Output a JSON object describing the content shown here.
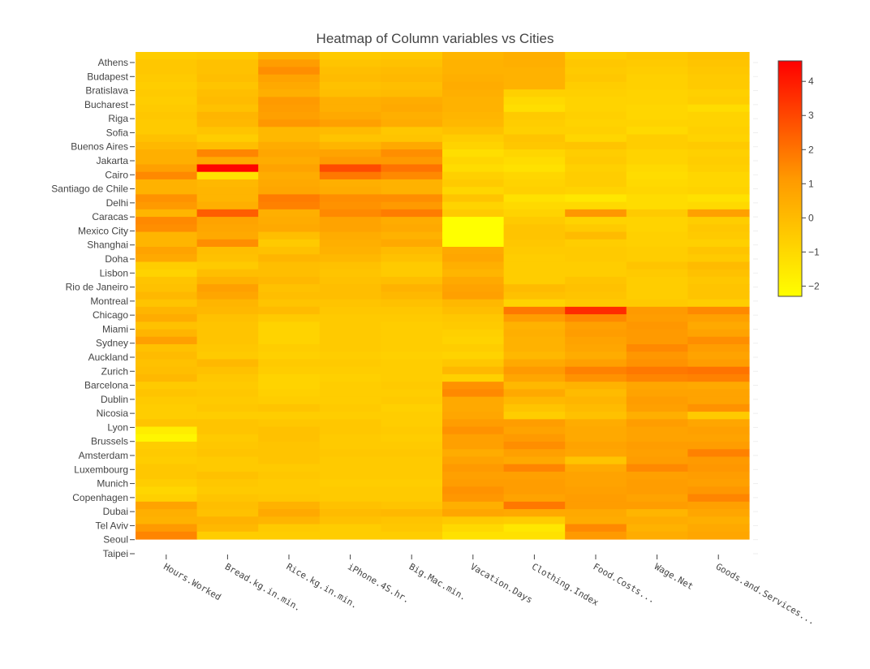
{
  "chart_data": {
    "type": "heatmap",
    "title": "Heatmap of Column variables vs Cities",
    "x": [
      "Hours.Worked",
      "Bread.kg.in.min.",
      "Rice.kg.in.min.",
      "iPhone.4S.hr.",
      "Big.Mac.min.",
      "Vacation.Days",
      "Clothing.Index",
      "Food.Costs...",
      "Wage.Net",
      "Goods.and.Services..."
    ],
    "y_tick_labels": [
      "Athens",
      "Budapest",
      "Bratislava",
      "Bucharest",
      "Riga",
      "Sofia",
      "Buenos Aires",
      "Jakarta",
      "Cairo",
      "Santiago de Chile",
      "Delhi",
      "Caracas",
      "Mexico City",
      "Shanghai",
      "Doha",
      "Lisbon",
      "Rio de Janeiro",
      "Montreal",
      "Chicago",
      "Miami",
      "Sydney",
      "Auckland",
      "Zurich",
      "Barcelona",
      "Dublin",
      "Nicosia",
      "Lyon",
      "Brussels",
      "Amsterdam",
      "Luxembourg",
      "Munich",
      "Copenhagen",
      "Dubai",
      "Tel Aviv",
      "Seoul",
      "Taipei"
    ],
    "colorscale": [
      [
        0,
        "#ffff00"
      ],
      [
        0.5,
        "#ff9900"
      ],
      [
        1,
        "#ff0000"
      ]
    ],
    "zmin": -2.3,
    "zmax": 4.6,
    "colorbar_ticks": [
      4,
      3,
      2,
      1,
      0,
      -1,
      -2
    ],
    "colorbar_tick_labels": [
      "4",
      "3",
      "2",
      "1",
      "0",
      "−1",
      "−2"
    ],
    "z": [
      [
        -0.6,
        -0.5,
        0.3,
        -0.5,
        -0.4,
        0.2,
        0.4,
        -0.6,
        -0.4,
        -0.2
      ],
      [
        -0.4,
        -0.2,
        1.0,
        -0.3,
        -0.2,
        0.3,
        0.4,
        -0.4,
        -0.5,
        -0.3
      ],
      [
        -0.4,
        -0.2,
        1.4,
        -0.1,
        0.0,
        0.3,
        0.3,
        -0.5,
        -0.6,
        -0.4
      ],
      [
        -0.5,
        -0.1,
        0.8,
        0.0,
        0.1,
        0.4,
        0.3,
        -0.4,
        -0.7,
        -0.5
      ],
      [
        -0.6,
        -0.3,
        0.6,
        -0.2,
        -0.1,
        0.5,
        0.3,
        -0.6,
        -0.7,
        -0.5
      ],
      [
        -0.5,
        -0.1,
        0.4,
        -0.1,
        0.0,
        0.4,
        -0.7,
        -0.7,
        -0.8,
        -0.7
      ],
      [
        -0.6,
        0.0,
        1.1,
        0.4,
        0.5,
        0.3,
        -1.0,
        -0.8,
        -0.8,
        -0.6
      ],
      [
        -0.5,
        -0.2,
        1.0,
        0.4,
        0.6,
        0.3,
        -1.2,
        -0.8,
        -0.9,
        -1.1
      ],
      [
        -0.4,
        0.2,
        0.9,
        0.6,
        0.4,
        0.2,
        -0.5,
        -0.7,
        -0.9,
        -0.8
      ],
      [
        -0.5,
        0.1,
        1.2,
        0.9,
        0.5,
        0.1,
        -0.6,
        -0.8,
        -0.8,
        -0.8
      ],
      [
        -0.5,
        -0.3,
        0.1,
        0.0,
        -0.4,
        -0.2,
        -0.7,
        -0.7,
        -1.0,
        -0.7
      ],
      [
        -0.2,
        -0.6,
        0.1,
        -0.3,
        -0.3,
        -0.6,
        -0.3,
        -0.9,
        -0.6,
        -0.8
      ],
      [
        0.1,
        -0.1,
        0.5,
        0.2,
        0.6,
        -0.8,
        -0.4,
        -0.3,
        -0.6,
        -0.5
      ],
      [
        0.4,
        1.6,
        0.7,
        0.8,
        1.4,
        -1.2,
        -0.9,
        -0.6,
        -0.8,
        -0.7
      ],
      [
        0.4,
        0.6,
        0.5,
        1.1,
        1.1,
        -0.9,
        -1.1,
        -0.5,
        -0.8,
        -0.6
      ],
      [
        0.9,
        4.5,
        0.8,
        2.9,
        2.0,
        -1.1,
        -1.3,
        -0.7,
        -1.0,
        -0.7
      ],
      [
        1.5,
        -1.3,
        0.5,
        1.9,
        1.5,
        -0.7,
        -0.9,
        -0.6,
        -1.1,
        -0.9
      ],
      [
        0.3,
        0.1,
        0.6,
        0.4,
        0.3,
        -0.5,
        -0.8,
        -0.6,
        -1.0,
        -0.9
      ],
      [
        0.3,
        0.2,
        0.7,
        0.5,
        0.3,
        -0.9,
        -0.7,
        -0.8,
        -0.9,
        -0.8
      ],
      [
        1.3,
        0.2,
        1.8,
        1.4,
        1.4,
        -0.3,
        -1.3,
        -1.5,
        -1.1,
        -1.3
      ],
      [
        1.1,
        0.4,
        1.7,
        1.3,
        1.1,
        -0.8,
        -1.0,
        -1.0,
        -1.1,
        -1.0
      ],
      [
        0.2,
        2.5,
        0.4,
        1.5,
        1.8,
        -0.5,
        -0.8,
        1.2,
        -0.5,
        0.9
      ],
      [
        1.5,
        0.8,
        0.5,
        0.8,
        0.5,
        -2.3,
        -0.5,
        -0.8,
        -0.8,
        -0.6
      ],
      [
        1.4,
        0.7,
        0.6,
        0.8,
        0.6,
        -2.3,
        -0.3,
        -0.5,
        -0.8,
        -0.4
      ],
      [
        0.2,
        0.6,
        -0.1,
        0.5,
        0.3,
        -2.3,
        -0.3,
        0.0,
        -0.7,
        -0.5
      ],
      [
        0.2,
        1.4,
        -0.5,
        0.4,
        0.6,
        -2.3,
        -0.4,
        -0.6,
        -0.7,
        -0.7
      ],
      [
        0.8,
        -0.1,
        -0.2,
        0.3,
        0.0,
        0.6,
        -0.5,
        -0.5,
        -0.6,
        -0.3
      ],
      [
        0.6,
        -0.2,
        0.2,
        0.1,
        -0.2,
        0.7,
        -0.6,
        -0.5,
        -0.6,
        -0.5
      ],
      [
        -0.6,
        -0.5,
        -0.1,
        -0.2,
        -0.5,
        0.4,
        -0.6,
        -0.6,
        -0.3,
        0.0
      ],
      [
        -0.8,
        -0.1,
        -0.1,
        -0.3,
        -0.5,
        0.2,
        -0.6,
        -0.6,
        -0.5,
        -0.2
      ],
      [
        -0.3,
        0.3,
        0.1,
        -0.2,
        -0.1,
        0.6,
        -0.6,
        -0.3,
        -0.6,
        -0.4
      ],
      [
        -0.2,
        0.9,
        -0.2,
        -0.1,
        0.3,
        0.8,
        0.0,
        -0.2,
        -0.6,
        -0.3
      ],
      [
        0.1,
        0.7,
        -0.1,
        -0.1,
        0.1,
        0.9,
        -0.2,
        -0.3,
        -0.6,
        -0.3
      ],
      [
        -0.3,
        0.2,
        -0.3,
        -0.3,
        -0.2,
        0.1,
        -0.8,
        -0.5,
        -0.5,
        -0.6
      ],
      [
        0.2,
        0.1,
        0.0,
        -0.4,
        -0.4,
        -0.1,
        1.9,
        3.6,
        1.1,
        1.5
      ],
      [
        0.5,
        -0.2,
        -0.5,
        -0.5,
        -0.5,
        -0.4,
        1.0,
        1.5,
        1.0,
        0.9
      ],
      [
        -0.2,
        -0.3,
        -0.8,
        -0.5,
        -0.6,
        -0.5,
        0.3,
        0.9,
        1.2,
        0.6
      ],
      [
        0.2,
        -0.3,
        -0.8,
        -0.5,
        -0.6,
        -0.7,
        0.4,
        1.0,
        1.1,
        0.8
      ],
      [
        0.9,
        -0.3,
        -0.8,
        -0.5,
        -0.6,
        -0.8,
        0.3,
        0.8,
        1.1,
        1.4
      ],
      [
        -0.2,
        -0.4,
        -0.6,
        -0.5,
        -0.6,
        -0.6,
        0.3,
        0.7,
        1.5,
        1.0
      ],
      [
        0.0,
        -0.5,
        -0.7,
        -0.6,
        -0.7,
        -0.8,
        0.1,
        0.5,
        1.2,
        0.8
      ],
      [
        -0.2,
        0.1,
        -0.5,
        -0.5,
        -0.6,
        -0.4,
        0.6,
        0.9,
        1.3,
        1.0
      ],
      [
        -0.1,
        -0.2,
        -0.6,
        -0.6,
        -0.6,
        0.1,
        1.1,
        1.7,
        1.9,
        2.0
      ],
      [
        0.1,
        -0.4,
        -0.8,
        -0.7,
        -0.6,
        -0.7,
        0.7,
        1.3,
        1.6,
        1.7
      ],
      [
        -0.5,
        -0.5,
        -0.8,
        -0.6,
        -0.5,
        1.3,
        0.1,
        0.3,
        0.7,
        0.6
      ],
      [
        -0.3,
        -0.4,
        -0.7,
        -0.6,
        -0.6,
        1.5,
        0.6,
        0.0,
        0.8,
        0.8
      ],
      [
        -0.5,
        -0.5,
        -0.6,
        -0.6,
        -0.5,
        0.6,
        0.1,
        0.2,
        1.0,
        0.8
      ],
      [
        -0.6,
        -0.4,
        -0.3,
        -0.5,
        -0.7,
        0.6,
        -0.3,
        0.0,
        0.9,
        1.3
      ],
      [
        -0.6,
        -0.6,
        -0.6,
        -0.6,
        -0.6,
        0.7,
        -0.6,
        -0.2,
        0.4,
        -0.5
      ],
      [
        -0.3,
        -0.3,
        -0.4,
        -0.4,
        -0.6,
        1.0,
        1.0,
        0.5,
        1.0,
        0.7
      ],
      [
        -1.7,
        -0.3,
        -0.2,
        -0.4,
        -0.5,
        1.3,
        0.8,
        0.6,
        0.8,
        0.9
      ],
      [
        -2.0,
        -0.5,
        -0.2,
        -0.5,
        -0.6,
        0.9,
        1.1,
        0.6,
        0.8,
        0.8
      ],
      [
        -0.6,
        -0.4,
        -0.3,
        -0.5,
        -0.5,
        0.9,
        1.4,
        0.8,
        1.0,
        1.0
      ],
      [
        -0.5,
        -0.3,
        -0.3,
        -0.4,
        -0.4,
        0.5,
        0.9,
        0.7,
        0.9,
        1.7
      ],
      [
        -0.6,
        -0.5,
        -0.3,
        -0.5,
        -0.5,
        0.8,
        0.6,
        -0.3,
        1.0,
        1.1
      ],
      [
        -0.4,
        -0.5,
        -0.5,
        -0.5,
        -0.5,
        1.1,
        1.6,
        0.6,
        1.5,
        1.2
      ],
      [
        -0.4,
        -0.2,
        -0.4,
        -0.5,
        -0.5,
        0.9,
        0.9,
        0.8,
        0.9,
        1.0
      ],
      [
        -0.6,
        -0.4,
        -0.5,
        -0.6,
        -0.6,
        1.0,
        1.0,
        0.8,
        1.0,
        0.9
      ],
      [
        -0.9,
        -0.5,
        -0.5,
        -0.5,
        -0.5,
        1.3,
        1.0,
        0.9,
        1.0,
        1.2
      ],
      [
        -0.7,
        -0.3,
        -0.4,
        -0.5,
        -0.5,
        1.2,
        0.8,
        1.0,
        0.8,
        1.6
      ],
      [
        0.8,
        -0.1,
        0.3,
        -0.2,
        -0.3,
        0.4,
        1.9,
        1.0,
        1.0,
        0.9
      ],
      [
        0.4,
        -0.2,
        0.6,
        0.0,
        0.1,
        0.7,
        0.6,
        0.6,
        0.2,
        0.7
      ],
      [
        0.3,
        0.3,
        0.2,
        -0.2,
        -0.3,
        -0.5,
        -0.6,
        0.5,
        0.5,
        0.4
      ],
      [
        1.1,
        0.1,
        -0.5,
        -0.6,
        -0.4,
        -1.0,
        -1.5,
        1.5,
        0.3,
        0.6
      ],
      [
        1.6,
        -0.6,
        -0.6,
        -0.6,
        -0.6,
        -1.3,
        -1.3,
        1.1,
        0.5,
        0.7
      ]
    ]
  }
}
